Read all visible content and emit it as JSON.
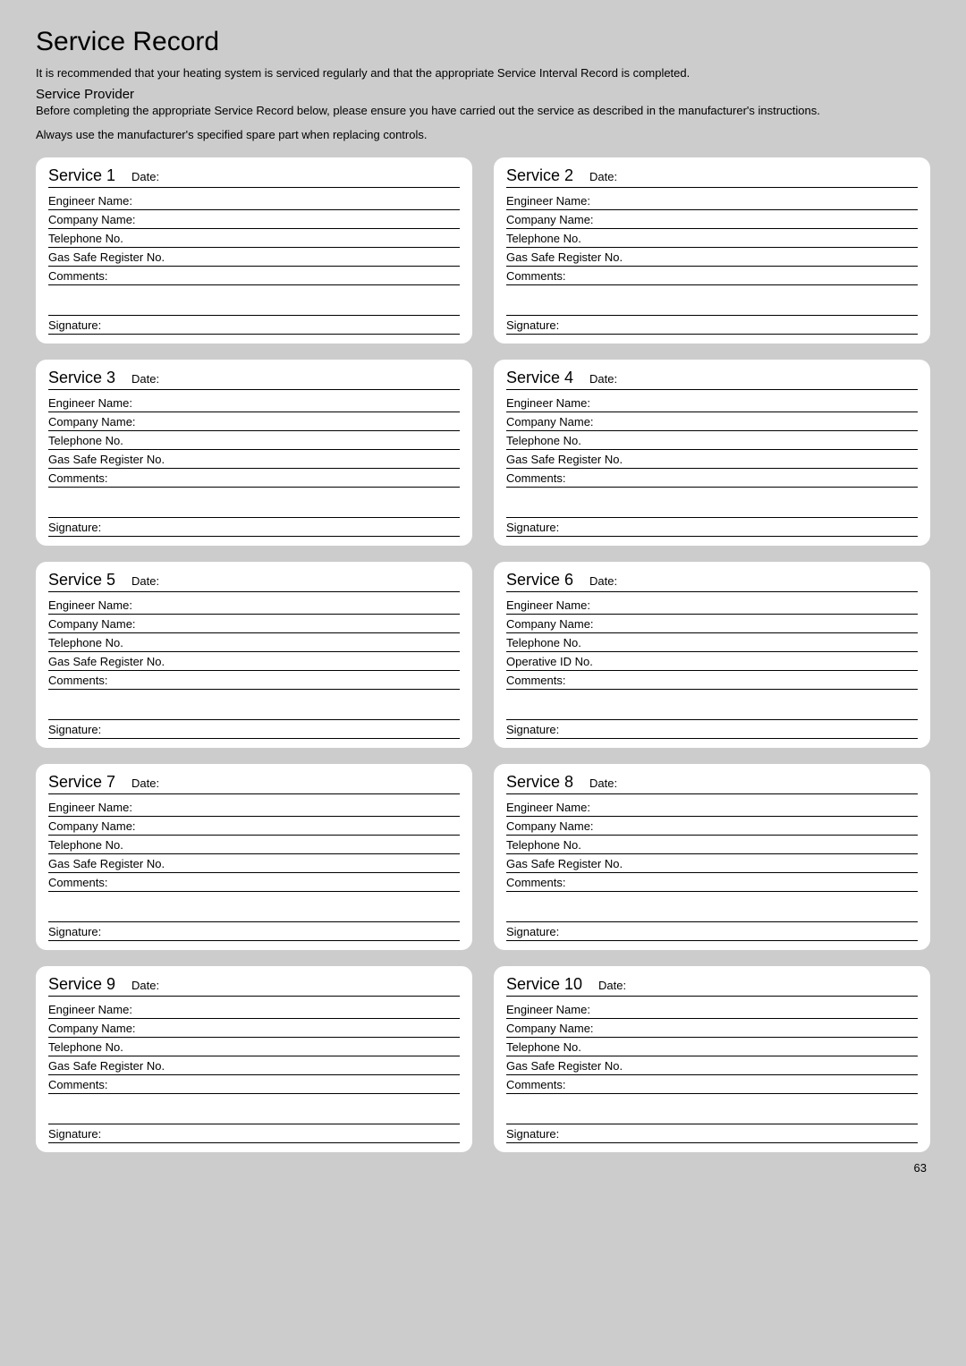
{
  "page_title": "Service Record",
  "intro": "It is recommended that your heating system is serviced regularly and that the appropriate Service Interval Record is completed.",
  "provider_heading": "Service Provider",
  "provider_text": "Before completing the appropriate Service Record below, please ensure you have carried out the service as described in the manufacturer's instructions.",
  "spare_note": "Always use the manufacturer's specified spare part when replacing controls.",
  "labels": {
    "date": "Date:",
    "engineer": "Engineer Name:",
    "company": "Company Name:",
    "telephone": "Telephone No.",
    "gas_safe": "Gas Safe Register No.",
    "operative": "Operative ID No.",
    "comments": "Comments:",
    "signature": "Signature:"
  },
  "services": [
    {
      "title": "Service 1",
      "reg_label_key": "gas_safe"
    },
    {
      "title": "Service 2",
      "reg_label_key": "gas_safe"
    },
    {
      "title": "Service 3",
      "reg_label_key": "gas_safe"
    },
    {
      "title": "Service 4",
      "reg_label_key": "gas_safe"
    },
    {
      "title": "Service 5",
      "reg_label_key": "gas_safe"
    },
    {
      "title": "Service 6",
      "reg_label_key": "operative"
    },
    {
      "title": "Service 7",
      "reg_label_key": "gas_safe"
    },
    {
      "title": "Service 8",
      "reg_label_key": "gas_safe"
    },
    {
      "title": "Service 9",
      "reg_label_key": "gas_safe"
    },
    {
      "title": "Service 10",
      "reg_label_key": "gas_safe"
    }
  ],
  "page_number": "63",
  "colors": {
    "page_bg": "#cccccc",
    "card_bg": "#ffffff",
    "text": "#000000",
    "rule": "#000000"
  }
}
